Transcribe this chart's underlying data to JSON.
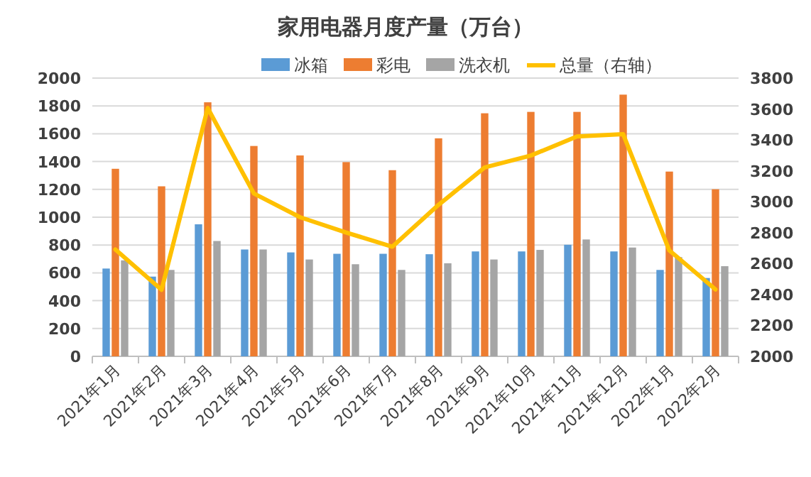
{
  "chart_data": {
    "type": "bar",
    "title": "家用电器月度产量（万台）",
    "categories": [
      "2021年1月",
      "2021年2月",
      "2021年3月",
      "2021年4月",
      "2021年5月",
      "2021年6月",
      "2021年7月",
      "2021年8月",
      "2021年9月",
      "2021年10月",
      "2021年11月",
      "2021年12月",
      "2022年1月",
      "2022年2月"
    ],
    "series": [
      {
        "name": "冰箱",
        "color": "#5b9bd5",
        "values": [
          631,
          573,
          949,
          768,
          747,
          737,
          737,
          734,
          754,
          754,
          802,
          754,
          621,
          563
        ]
      },
      {
        "name": "彩电",
        "color": "#ed7d31",
        "values": [
          1348,
          1222,
          1826,
          1512,
          1444,
          1396,
          1338,
          1567,
          1747,
          1757,
          1757,
          1881,
          1328,
          1201
        ]
      },
      {
        "name": "洗衣机",
        "color": "#a5a5a5",
        "values": [
          690,
          621,
          829,
          768,
          696,
          662,
          621,
          669,
          696,
          765,
          840,
          782,
          713,
          648
        ]
      },
      {
        "name": "总量（右轴）",
        "color": "#ffc000",
        "type": "line",
        "axis": "y2",
        "values": [
          2691,
          2430,
          3606,
          3053,
          2900,
          2801,
          2709,
          2980,
          3222,
          3299,
          3422,
          3437,
          2685,
          2433
        ]
      }
    ],
    "ylim": [
      0,
      2000
    ],
    "yticks": [
      0,
      200,
      400,
      600,
      800,
      1000,
      1200,
      1400,
      1600,
      1800,
      2000
    ],
    "y2lim": [
      2000,
      3800
    ],
    "y2ticks": [
      2000,
      2200,
      2400,
      2600,
      2800,
      3000,
      3200,
      3400,
      3600,
      3800
    ],
    "grid": "y",
    "legend": "top"
  }
}
